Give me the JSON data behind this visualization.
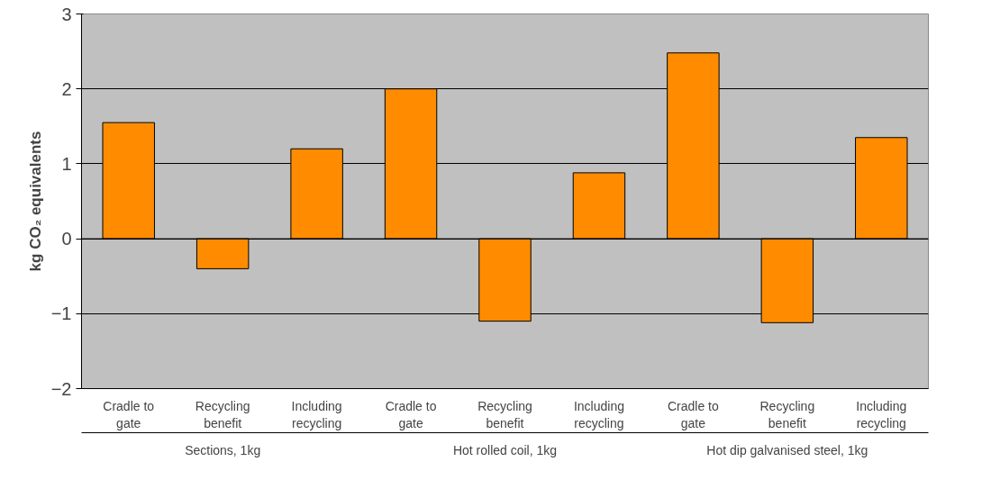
{
  "chart_data": {
    "type": "bar",
    "ylabel": "kg CO₂ equivalents",
    "categories": [
      "Cradle to gate",
      "Recycling benefit",
      "Including recycling",
      "Cradle to gate",
      "Recycling benefit",
      "Including recycling",
      "Cradle to gate",
      "Recycling benefit",
      "Including recycling"
    ],
    "values": [
      1.55,
      -0.4,
      1.2,
      2.0,
      -1.1,
      0.88,
      2.48,
      -1.12,
      1.35
    ],
    "color": "#ff8c00",
    "annotations": [
      "Sections, 1kg",
      "Hot rolled coil, 1kg",
      "Hot dip galvanised steel, 1kg"
    ],
    "ylim": [
      -2,
      3
    ],
    "yticks": [
      -2,
      -1,
      0,
      1,
      2,
      3
    ],
    "grid": "y"
  }
}
